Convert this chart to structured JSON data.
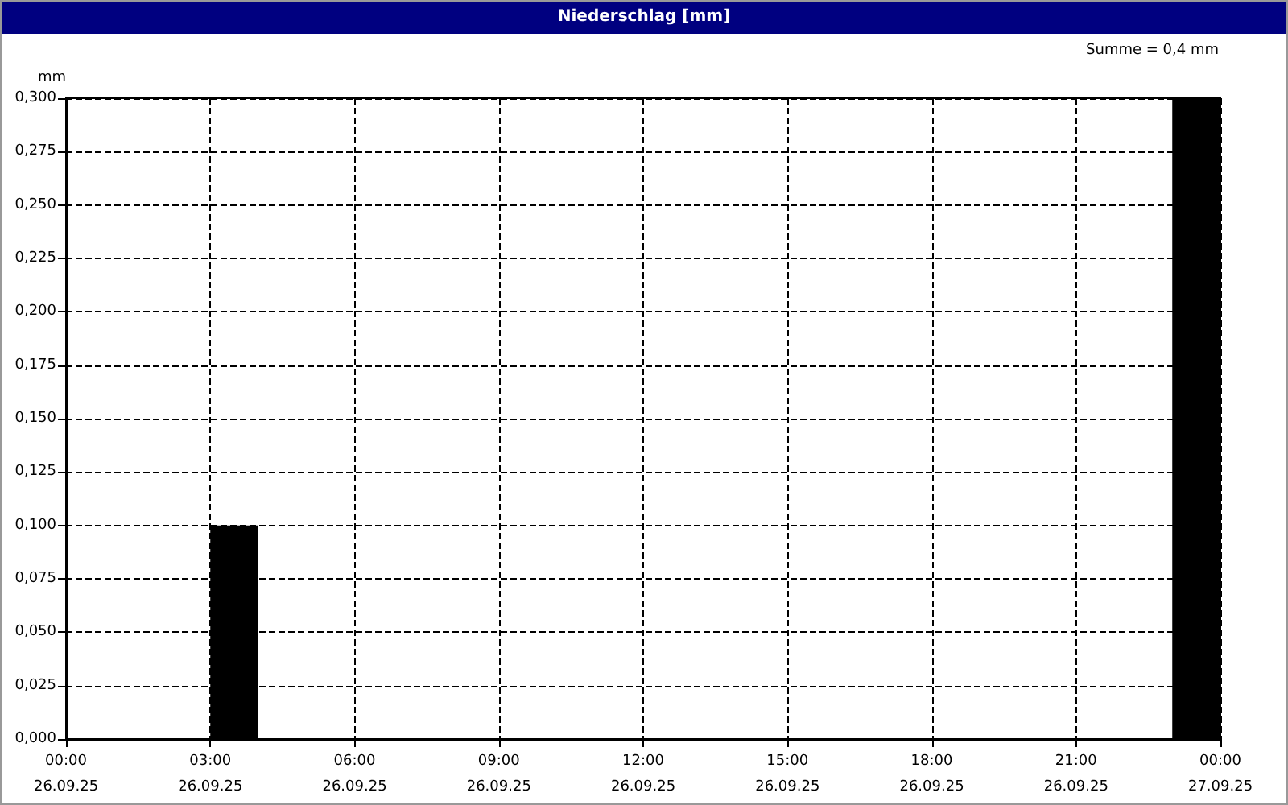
{
  "chart_data": {
    "type": "histogram",
    "title": "Niederschlag [mm]",
    "ylabel": "mm",
    "annotations": [
      "Summe = 0,4 mm"
    ],
    "bins": [
      "--09-26T00:00",
      "--09-26T01:00",
      "--09-26T02:00",
      "--09-26T03:00",
      "--09-26T04:00",
      "--09-26T05:00",
      "--09-26T06:00",
      "--09-26T07:00",
      "--09-26T08:00",
      "--09-26T09:00",
      "--09-26T10:00",
      "--09-26T11:00",
      "--09-26T12:00",
      "--09-26T13:00",
      "--09-26T14:00",
      "--09-26T15:00",
      "--09-26T16:00",
      "--09-26T17:00",
      "--09-26T18:00",
      "--09-26T19:00",
      "--09-26T20:00",
      "--09-26T21:00",
      "--09-26T22:00",
      "--09-26T23:00",
      "--09-27T00:00"
    ],
    "values": [
      0,
      0,
      0,
      0.1,
      0,
      0,
      0,
      0,
      0,
      0,
      0,
      0,
      0,
      0,
      0,
      0,
      0,
      0,
      0,
      0,
      0,
      0,
      0,
      0.3
    ],
    "color": "#000000",
    "xlim": [
      "--09-26T00:00",
      "--09-27T00:00"
    ],
    "xticks": [
      {
        "value": "--09-26T00:00",
        "label": "00:00\n26.09.25"
      },
      {
        "value": "--09-26T03:00",
        "label": "03:00\n26.09.25"
      },
      {
        "value": "--09-26T06:00",
        "label": "06:00\n26.09.25"
      },
      {
        "value": "--09-26T09:00",
        "label": "09:00\n26.09.25"
      },
      {
        "value": "--09-26T12:00",
        "label": "12:00\n26.09.25"
      },
      {
        "value": "--09-26T15:00",
        "label": "15:00\n26.09.25"
      },
      {
        "value": "--09-26T18:00",
        "label": "18:00\n26.09.25"
      },
      {
        "value": "--09-26T21:00",
        "label": "21:00\n26.09.25"
      },
      {
        "value": "--09-27T00:00",
        "label": "00:00\n27.09.25"
      }
    ],
    "ylim": [
      0,
      0.3
    ],
    "yticks": [
      {
        "value": 0,
        "label": "0,000"
      },
      {
        "value": 0.025,
        "label": "0,025"
      },
      {
        "value": 0.05,
        "label": "0,050"
      },
      {
        "value": 0.075,
        "label": "0,075"
      },
      {
        "value": 0.1,
        "label": "0,100"
      },
      {
        "value": 0.125,
        "label": "0,125"
      },
      {
        "value": 0.15,
        "label": "0,150"
      },
      {
        "value": 0.175,
        "label": "0,175"
      },
      {
        "value": 0.2,
        "label": "0,200"
      },
      {
        "value": 0.225,
        "label": "0,225"
      },
      {
        "value": 0.25,
        "label": "0,250"
      },
      {
        "value": 0.275,
        "label": "0,275"
      },
      {
        "value": 0.3,
        "label": "0,300"
      }
    ],
    "grid": true,
    "line_style": "dashed"
  }
}
